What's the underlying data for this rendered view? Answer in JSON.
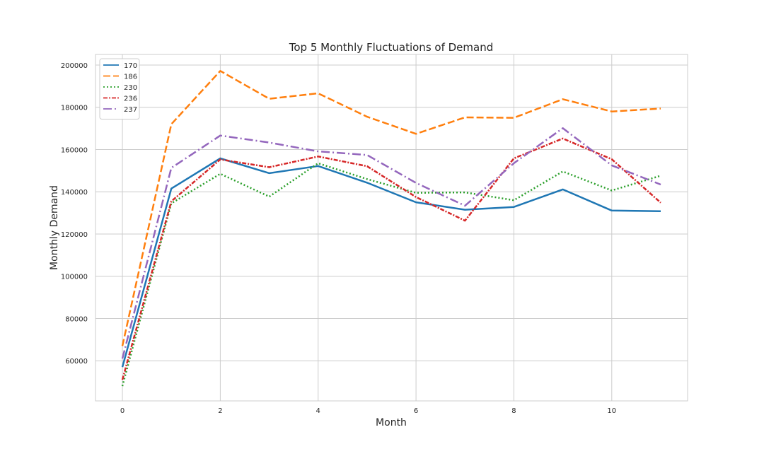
{
  "chart_data": {
    "type": "line",
    "title": "Top 5 Monthly Fluctuations of Demand",
    "xlabel": "Month",
    "ylabel": "Monthly Demand",
    "xlim": [
      -0.55,
      11.55
    ],
    "ylim": [
      41000,
      205000
    ],
    "xticks": [
      0,
      2,
      4,
      6,
      8,
      10
    ],
    "yticks": [
      60000,
      80000,
      100000,
      120000,
      140000,
      160000,
      180000,
      200000
    ],
    "grid": true,
    "legend_position": "top-left",
    "x": [
      0,
      1,
      2,
      3,
      4,
      5,
      6,
      7,
      8,
      9,
      10,
      11
    ],
    "series": [
      {
        "name": "170",
        "color": "#1f77b4",
        "dash": "solid",
        "values": [
          57000,
          141500,
          155800,
          148800,
          152200,
          144300,
          135000,
          131500,
          132800,
          141100,
          131100,
          130800
        ]
      },
      {
        "name": "186",
        "color": "#ff7f0e",
        "dash": "dashed",
        "values": [
          67000,
          172000,
          197200,
          184000,
          186600,
          175500,
          167400,
          175200,
          175000,
          183800,
          178000,
          179400
        ]
      },
      {
        "name": "230",
        "color": "#2ca02c",
        "dash": "dotted",
        "values": [
          48000,
          134500,
          148500,
          137700,
          153500,
          146000,
          139500,
          139700,
          136000,
          149600,
          140600,
          147600
        ]
      },
      {
        "name": "236",
        "color": "#d62728",
        "dash": "dashdot-dense",
        "values": [
          51000,
          135500,
          155300,
          151600,
          156700,
          152100,
          137500,
          126300,
          155800,
          165200,
          155400,
          134800
        ]
      },
      {
        "name": "237",
        "color": "#9467bd",
        "dash": "dashdot",
        "values": [
          61000,
          151300,
          166600,
          163300,
          159100,
          157400,
          144200,
          133400,
          153500,
          170100,
          152500,
          143400
        ]
      }
    ]
  }
}
